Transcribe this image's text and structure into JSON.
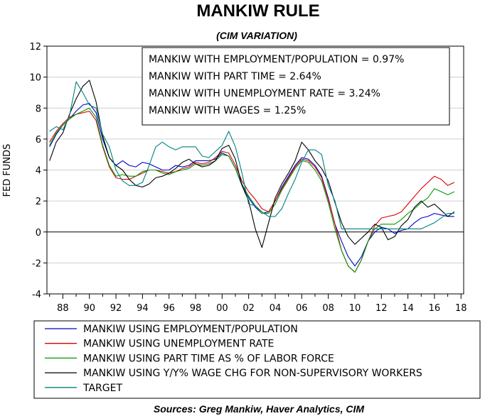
{
  "chart_data": {
    "type": "line",
    "title": "MANKIW RULE",
    "subtitle": "(CIM VARIATION)",
    "ylabel": "FED FUNDS",
    "xlabel": "",
    "xlim": [
      1986.8,
      2018.2
    ],
    "ylim": [
      -4,
      12
    ],
    "y_ticks": [
      -4,
      -2,
      0,
      2,
      4,
      6,
      8,
      10,
      12
    ],
    "x_ticks": [
      1988,
      1990,
      1992,
      1994,
      1996,
      1998,
      2000,
      2002,
      2004,
      2006,
      2008,
      2010,
      2012,
      2014,
      2016,
      2018
    ],
    "x_tick_labels": [
      "88",
      "90",
      "92",
      "94",
      "96",
      "98",
      "00",
      "02",
      "04",
      "06",
      "08",
      "10",
      "12",
      "14",
      "16",
      "18"
    ],
    "grid": "horizontal",
    "zero_line": true,
    "legend_position": "below",
    "annotations": [
      "MANKIW WITH EMPLOYMENT/POPULATION = 0.97%",
      "MANKIW WITH PART TIME = 2.64%",
      "MANKIW WITH UNEMPLOYMENT RATE = 3.24%",
      "MANKIW WITH WAGES = 1.25%"
    ],
    "source": "Sources:  Greg Mankiw, Haver Analytics, CIM",
    "series": [
      {
        "name": "MANKIW USING EMPLOYMENT/POPULATION",
        "color": "#0000cc",
        "x": [
          1987.0,
          1987.5,
          1988.0,
          1988.5,
          1989.0,
          1989.5,
          1990.0,
          1990.5,
          1991.0,
          1991.5,
          1992.0,
          1992.5,
          1993.0,
          1993.5,
          1994.0,
          1994.5,
          1995.0,
          1995.5,
          1996.0,
          1996.5,
          1997.0,
          1997.5,
          1998.0,
          1998.5,
          1999.0,
          1999.5,
          2000.0,
          2000.5,
          2001.0,
          2001.5,
          2002.0,
          2002.5,
          2003.0,
          2003.5,
          2004.0,
          2004.5,
          2005.0,
          2005.5,
          2006.0,
          2006.5,
          2007.0,
          2007.5,
          2008.0,
          2008.5,
          2009.0,
          2009.5,
          2010.0,
          2010.5,
          2011.0,
          2011.5,
          2012.0,
          2012.5,
          2013.0,
          2013.5,
          2014.0,
          2014.5,
          2015.0,
          2015.5,
          2016.0,
          2016.5,
          2017.0,
          2017.5
        ],
        "values": [
          5.5,
          6.3,
          6.9,
          7.3,
          7.8,
          8.2,
          8.3,
          7.7,
          6.0,
          4.8,
          4.3,
          4.6,
          4.3,
          4.2,
          4.5,
          4.4,
          4.2,
          4.0,
          4.0,
          4.3,
          4.2,
          4.3,
          4.6,
          4.6,
          4.6,
          4.7,
          5.1,
          4.9,
          4.1,
          3.0,
          2.2,
          1.6,
          1.2,
          1.3,
          2.0,
          2.9,
          3.6,
          4.3,
          4.8,
          4.7,
          4.3,
          3.6,
          2.2,
          0.5,
          -0.6,
          -1.6,
          -2.2,
          -1.6,
          -0.6,
          0.0,
          0.3,
          0.2,
          -0.1,
          0.1,
          0.2,
          0.6,
          0.9,
          1.0,
          1.2,
          1.1,
          1.0,
          1.0
        ]
      },
      {
        "name": "MANKIW USING UNEMPLOYMENT RATE",
        "color": "#dd0000",
        "x": [
          1987.0,
          1987.5,
          1988.0,
          1988.5,
          1989.0,
          1989.5,
          1990.0,
          1990.5,
          1991.0,
          1991.5,
          1992.0,
          1992.5,
          1993.0,
          1993.5,
          1994.0,
          1994.5,
          1995.0,
          1995.5,
          1996.0,
          1996.5,
          1997.0,
          1997.5,
          1998.0,
          1998.5,
          1999.0,
          1999.5,
          2000.0,
          2000.5,
          2001.0,
          2001.5,
          2002.0,
          2002.5,
          2003.0,
          2003.5,
          2004.0,
          2004.5,
          2005.0,
          2005.5,
          2006.0,
          2006.5,
          2007.0,
          2007.5,
          2008.0,
          2008.5,
          2009.0,
          2009.5,
          2010.0,
          2010.5,
          2011.0,
          2011.5,
          2012.0,
          2012.5,
          2013.0,
          2013.5,
          2014.0,
          2014.5,
          2015.0,
          2015.5,
          2016.0,
          2016.5,
          2017.0,
          2017.5
        ],
        "values": [
          5.8,
          6.5,
          7.0,
          7.4,
          7.6,
          7.7,
          7.8,
          7.2,
          5.5,
          4.2,
          3.5,
          3.4,
          3.4,
          3.6,
          3.8,
          4.0,
          4.0,
          3.9,
          3.8,
          3.9,
          4.1,
          4.2,
          4.5,
          4.4,
          4.5,
          4.8,
          5.2,
          5.1,
          4.3,
          3.3,
          2.6,
          2.1,
          1.5,
          1.3,
          2.0,
          2.8,
          3.5,
          4.2,
          4.7,
          4.6,
          4.2,
          3.5,
          2.1,
          0.5,
          -1.2,
          -2.2,
          -2.6,
          -1.8,
          -0.6,
          0.4,
          0.9,
          1.0,
          1.1,
          1.3,
          1.8,
          2.3,
          2.8,
          3.2,
          3.6,
          3.4,
          3.0,
          3.2
        ]
      },
      {
        "name": "MANKIW USING PART TIME AS % OF LABOR FORCE",
        "color": "#009900",
        "x": [
          1987.0,
          1987.5,
          1988.0,
          1988.5,
          1989.0,
          1989.5,
          1990.0,
          1990.5,
          1991.0,
          1991.5,
          1992.0,
          1992.5,
          1993.0,
          1993.5,
          1994.0,
          1994.5,
          1995.0,
          1995.5,
          1996.0,
          1996.5,
          1997.0,
          1997.5,
          1998.0,
          1998.5,
          1999.0,
          1999.5,
          2000.0,
          2000.5,
          2001.0,
          2001.5,
          2002.0,
          2002.5,
          2003.0,
          2003.5,
          2004.0,
          2004.5,
          2005.0,
          2005.5,
          2006.0,
          2006.5,
          2007.0,
          2007.5,
          2008.0,
          2008.5,
          2009.0,
          2009.5,
          2010.0,
          2010.5,
          2011.0,
          2011.5,
          2012.0,
          2012.5,
          2013.0,
          2013.5,
          2014.0,
          2014.5,
          2015.0,
          2015.5,
          2016.0,
          2016.5,
          2017.0,
          2017.5
        ],
        "values": [
          5.6,
          6.4,
          6.9,
          7.3,
          7.6,
          7.8,
          8.0,
          7.4,
          5.6,
          4.3,
          3.6,
          3.7,
          3.6,
          3.6,
          3.9,
          4.0,
          4.0,
          3.8,
          3.7,
          3.9,
          4.0,
          4.1,
          4.4,
          4.3,
          4.4,
          4.6,
          5.0,
          4.9,
          4.1,
          3.1,
          2.3,
          1.7,
          1.2,
          1.2,
          1.8,
          2.7,
          3.4,
          4.1,
          4.6,
          4.5,
          4.0,
          3.3,
          1.9,
          0.2,
          -1.2,
          -2.2,
          -2.6,
          -1.8,
          -0.6,
          0.2,
          0.5,
          0.5,
          0.5,
          0.8,
          1.2,
          1.5,
          1.9,
          2.2,
          2.8,
          2.6,
          2.4,
          2.6
        ]
      },
      {
        "name": "MANKIW USING Y/Y% WAGE CHG FOR NON-SUPERVISORY WORKERS",
        "color": "#000000",
        "x": [
          1987.0,
          1987.5,
          1988.0,
          1988.5,
          1989.0,
          1989.5,
          1990.0,
          1990.5,
          1991.0,
          1991.5,
          1992.0,
          1992.5,
          1993.0,
          1993.5,
          1994.0,
          1994.5,
          1995.0,
          1995.5,
          1996.0,
          1996.5,
          1997.0,
          1997.5,
          1998.0,
          1998.5,
          1999.0,
          1999.5,
          2000.0,
          2000.5,
          2001.0,
          2001.5,
          2002.0,
          2002.5,
          2003.0,
          2003.5,
          2004.0,
          2004.5,
          2005.0,
          2005.5,
          2006.0,
          2006.5,
          2007.0,
          2007.5,
          2008.0,
          2008.5,
          2009.0,
          2009.5,
          2010.0,
          2010.5,
          2011.0,
          2011.5,
          2012.0,
          2012.5,
          2013.0,
          2013.5,
          2014.0,
          2014.5,
          2015.0,
          2015.5,
          2016.0,
          2016.5,
          2017.0,
          2017.5
        ],
        "values": [
          4.6,
          5.8,
          6.4,
          7.6,
          8.6,
          9.4,
          9.8,
          8.4,
          6.2,
          4.8,
          4.3,
          4.0,
          3.4,
          3.0,
          2.9,
          3.1,
          3.5,
          3.6,
          3.8,
          4.1,
          4.5,
          4.7,
          4.4,
          4.2,
          4.3,
          4.6,
          5.4,
          5.6,
          4.7,
          3.0,
          2.0,
          0.2,
          -1.0,
          0.6,
          2.2,
          3.1,
          3.8,
          4.6,
          5.8,
          5.3,
          4.6,
          4.1,
          3.3,
          1.9,
          0.6,
          -0.3,
          -0.8,
          -0.4,
          0.0,
          0.5,
          0.3,
          -0.5,
          -0.3,
          0.4,
          0.8,
          1.6,
          2.0,
          1.6,
          1.8,
          1.4,
          1.0,
          1.3
        ]
      },
      {
        "name": "TARGET",
        "color": "#008080",
        "x": [
          1987.0,
          1987.5,
          1988.0,
          1988.5,
          1989.0,
          1989.5,
          1990.0,
          1990.5,
          1991.0,
          1991.5,
          1992.0,
          1992.5,
          1993.0,
          1993.5,
          1994.0,
          1994.5,
          1995.0,
          1995.5,
          1996.0,
          1996.5,
          1997.0,
          1997.5,
          1998.0,
          1998.5,
          1999.0,
          1999.5,
          2000.0,
          2000.5,
          2001.0,
          2001.5,
          2002.0,
          2002.5,
          2003.0,
          2003.5,
          2004.0,
          2004.5,
          2005.0,
          2005.5,
          2006.0,
          2006.5,
          2007.0,
          2007.5,
          2008.0,
          2008.5,
          2009.0,
          2009.5,
          2010.0,
          2010.5,
          2011.0,
          2011.5,
          2012.0,
          2012.5,
          2013.0,
          2013.5,
          2014.0,
          2014.5,
          2015.0,
          2015.5,
          2016.0,
          2016.5,
          2017.0,
          2017.5
        ],
        "values": [
          6.5,
          6.8,
          6.6,
          7.5,
          9.7,
          9.0,
          8.2,
          8.0,
          6.3,
          5.5,
          4.0,
          3.3,
          3.0,
          3.0,
          3.2,
          4.3,
          5.5,
          5.8,
          5.5,
          5.3,
          5.5,
          5.5,
          5.5,
          4.9,
          4.8,
          5.2,
          5.6,
          6.5,
          5.5,
          3.8,
          1.8,
          1.7,
          1.3,
          1.0,
          1.0,
          1.5,
          2.5,
          3.4,
          4.5,
          5.3,
          5.3,
          5.0,
          3.0,
          2.0,
          0.2,
          0.2,
          0.2,
          0.2,
          0.2,
          0.2,
          0.2,
          0.2,
          0.2,
          0.2,
          0.2,
          0.2,
          0.2,
          0.4,
          0.6,
          0.9,
          1.2,
          1.2
        ]
      }
    ]
  }
}
